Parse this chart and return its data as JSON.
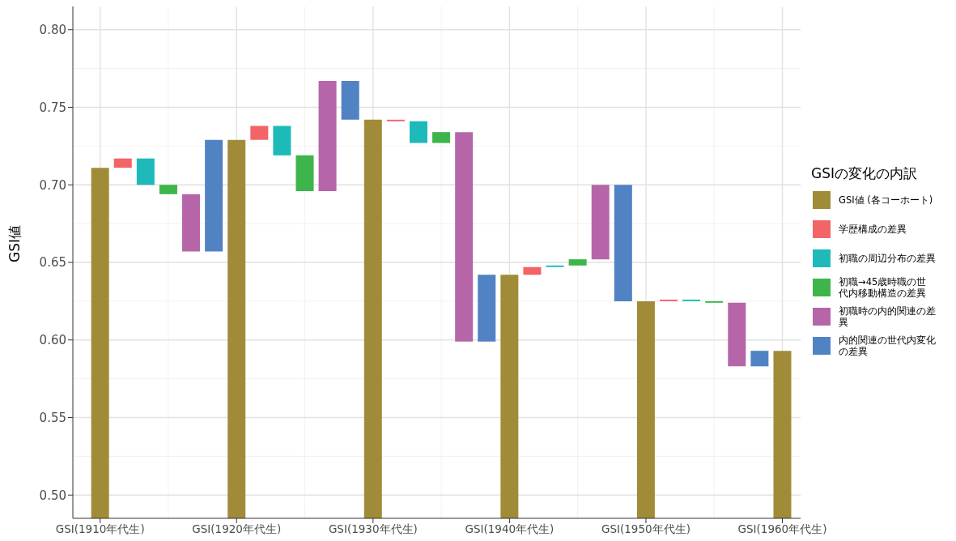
{
  "chart_data": {
    "type": "bar",
    "ylabel": "GSI値",
    "legend_title": "GSIの変化の内訳",
    "legend": "right",
    "grid": true,
    "categories": [
      "GSI(1910年代生)",
      null,
      null,
      null,
      null,
      null,
      "GSI(1920年代生)",
      null,
      null,
      null,
      null,
      null,
      "GSI(1930年代生)",
      null,
      null,
      null,
      null,
      null,
      "GSI(1940年代生)",
      null,
      null,
      null,
      null,
      null,
      "GSI(1950年代生)",
      null,
      null,
      null,
      null,
      null,
      "GSI(1960年代生)"
    ],
    "ylim": [
      0.485,
      0.815
    ],
    "yticks": [
      {
        "value": 0.5,
        "label": "0.50"
      },
      0.55,
      {
        "value": 0.6,
        "label": "0.60"
      },
      0.65,
      {
        "value": 0.7,
        "label": "0.70"
      },
      0.75,
      {
        "value": 0.8,
        "label": "0.80"
      }
    ],
    "series": [
      {
        "name": "GSI値 (各コーホート)",
        "color": "#a08c38",
        "values": [
          0.711,
          null,
          null,
          null,
          null,
          null,
          0.729,
          null,
          null,
          null,
          null,
          null,
          0.742,
          null,
          null,
          null,
          null,
          null,
          0.642,
          null,
          null,
          null,
          null,
          null,
          0.625,
          null,
          null,
          null,
          null,
          null,
          0.593
        ]
      },
      {
        "name": "学歴構成の差異",
        "color": "#f26466",
        "base": [
          null,
          0.711,
          null,
          null,
          null,
          null,
          null,
          0.729,
          null,
          null,
          null,
          null,
          null,
          0.742,
          null,
          null,
          null,
          null,
          null,
          0.642,
          null,
          null,
          null,
          null,
          null,
          0.625,
          null,
          null,
          null,
          null,
          null
        ],
        "values": [
          null,
          0.006,
          null,
          null,
          null,
          null,
          null,
          0.009,
          null,
          null,
          null,
          null,
          null,
          -0.001,
          null,
          null,
          null,
          null,
          null,
          0.005,
          null,
          null,
          null,
          null,
          null,
          0.001,
          null,
          null,
          null,
          null,
          null
        ]
      },
      {
        "name": "初職の周辺分布の差異",
        "color": "#1dbab9",
        "base": [
          null,
          null,
          0.717,
          null,
          null,
          null,
          null,
          null,
          0.738,
          null,
          null,
          null,
          null,
          null,
          0.741,
          null,
          null,
          null,
          null,
          null,
          0.647,
          null,
          null,
          null,
          null,
          null,
          0.626,
          null,
          null,
          null,
          null
        ],
        "values": [
          null,
          null,
          -0.017,
          null,
          null,
          null,
          null,
          null,
          -0.019,
          null,
          null,
          null,
          null,
          null,
          -0.014,
          null,
          null,
          null,
          null,
          null,
          0.001,
          null,
          null,
          null,
          null,
          null,
          -0.001,
          null,
          null,
          null,
          null
        ]
      },
      {
        "name": "初職→45歳時職の世代内移動構造の差異",
        "color": "#3db54a",
        "base": [
          null,
          null,
          null,
          0.7,
          null,
          null,
          null,
          null,
          null,
          0.719,
          null,
          null,
          null,
          null,
          null,
          0.727,
          null,
          null,
          null,
          null,
          null,
          0.648,
          null,
          null,
          null,
          null,
          null,
          0.625,
          null,
          null,
          null
        ],
        "values": [
          null,
          null,
          null,
          -0.006,
          null,
          null,
          null,
          null,
          null,
          -0.023,
          null,
          null,
          null,
          null,
          null,
          0.007,
          null,
          null,
          null,
          null,
          null,
          0.004,
          null,
          null,
          null,
          null,
          null,
          -0.001,
          null,
          null,
          null
        ]
      },
      {
        "name": "初職時の内的関連の差異",
        "color": "#b665a8",
        "base": [
          null,
          null,
          null,
          null,
          0.694,
          null,
          null,
          null,
          null,
          null,
          0.696,
          null,
          null,
          null,
          null,
          null,
          0.734,
          null,
          null,
          null,
          null,
          null,
          0.652,
          null,
          null,
          null,
          null,
          null,
          0.624,
          null,
          null
        ],
        "values": [
          null,
          null,
          null,
          null,
          -0.037,
          null,
          null,
          null,
          null,
          null,
          0.071,
          null,
          null,
          null,
          null,
          null,
          -0.135,
          null,
          null,
          null,
          null,
          null,
          0.048,
          null,
          null,
          null,
          null,
          null,
          -0.041,
          null,
          null
        ]
      },
      {
        "name": "内的関連の世代内変化の差異",
        "color": "#5182c4",
        "base": [
          null,
          null,
          null,
          null,
          null,
          0.657,
          null,
          null,
          null,
          null,
          null,
          0.767,
          null,
          null,
          null,
          null,
          null,
          0.599,
          null,
          null,
          null,
          null,
          null,
          0.7,
          null,
          null,
          null,
          null,
          null,
          0.583,
          null
        ],
        "values": [
          null,
          null,
          null,
          null,
          null,
          0.072,
          null,
          null,
          null,
          null,
          null,
          -0.025,
          null,
          null,
          null,
          null,
          null,
          0.043,
          null,
          null,
          null,
          null,
          null,
          -0.075,
          null,
          null,
          null,
          null,
          null,
          0.01,
          null
        ]
      }
    ]
  }
}
